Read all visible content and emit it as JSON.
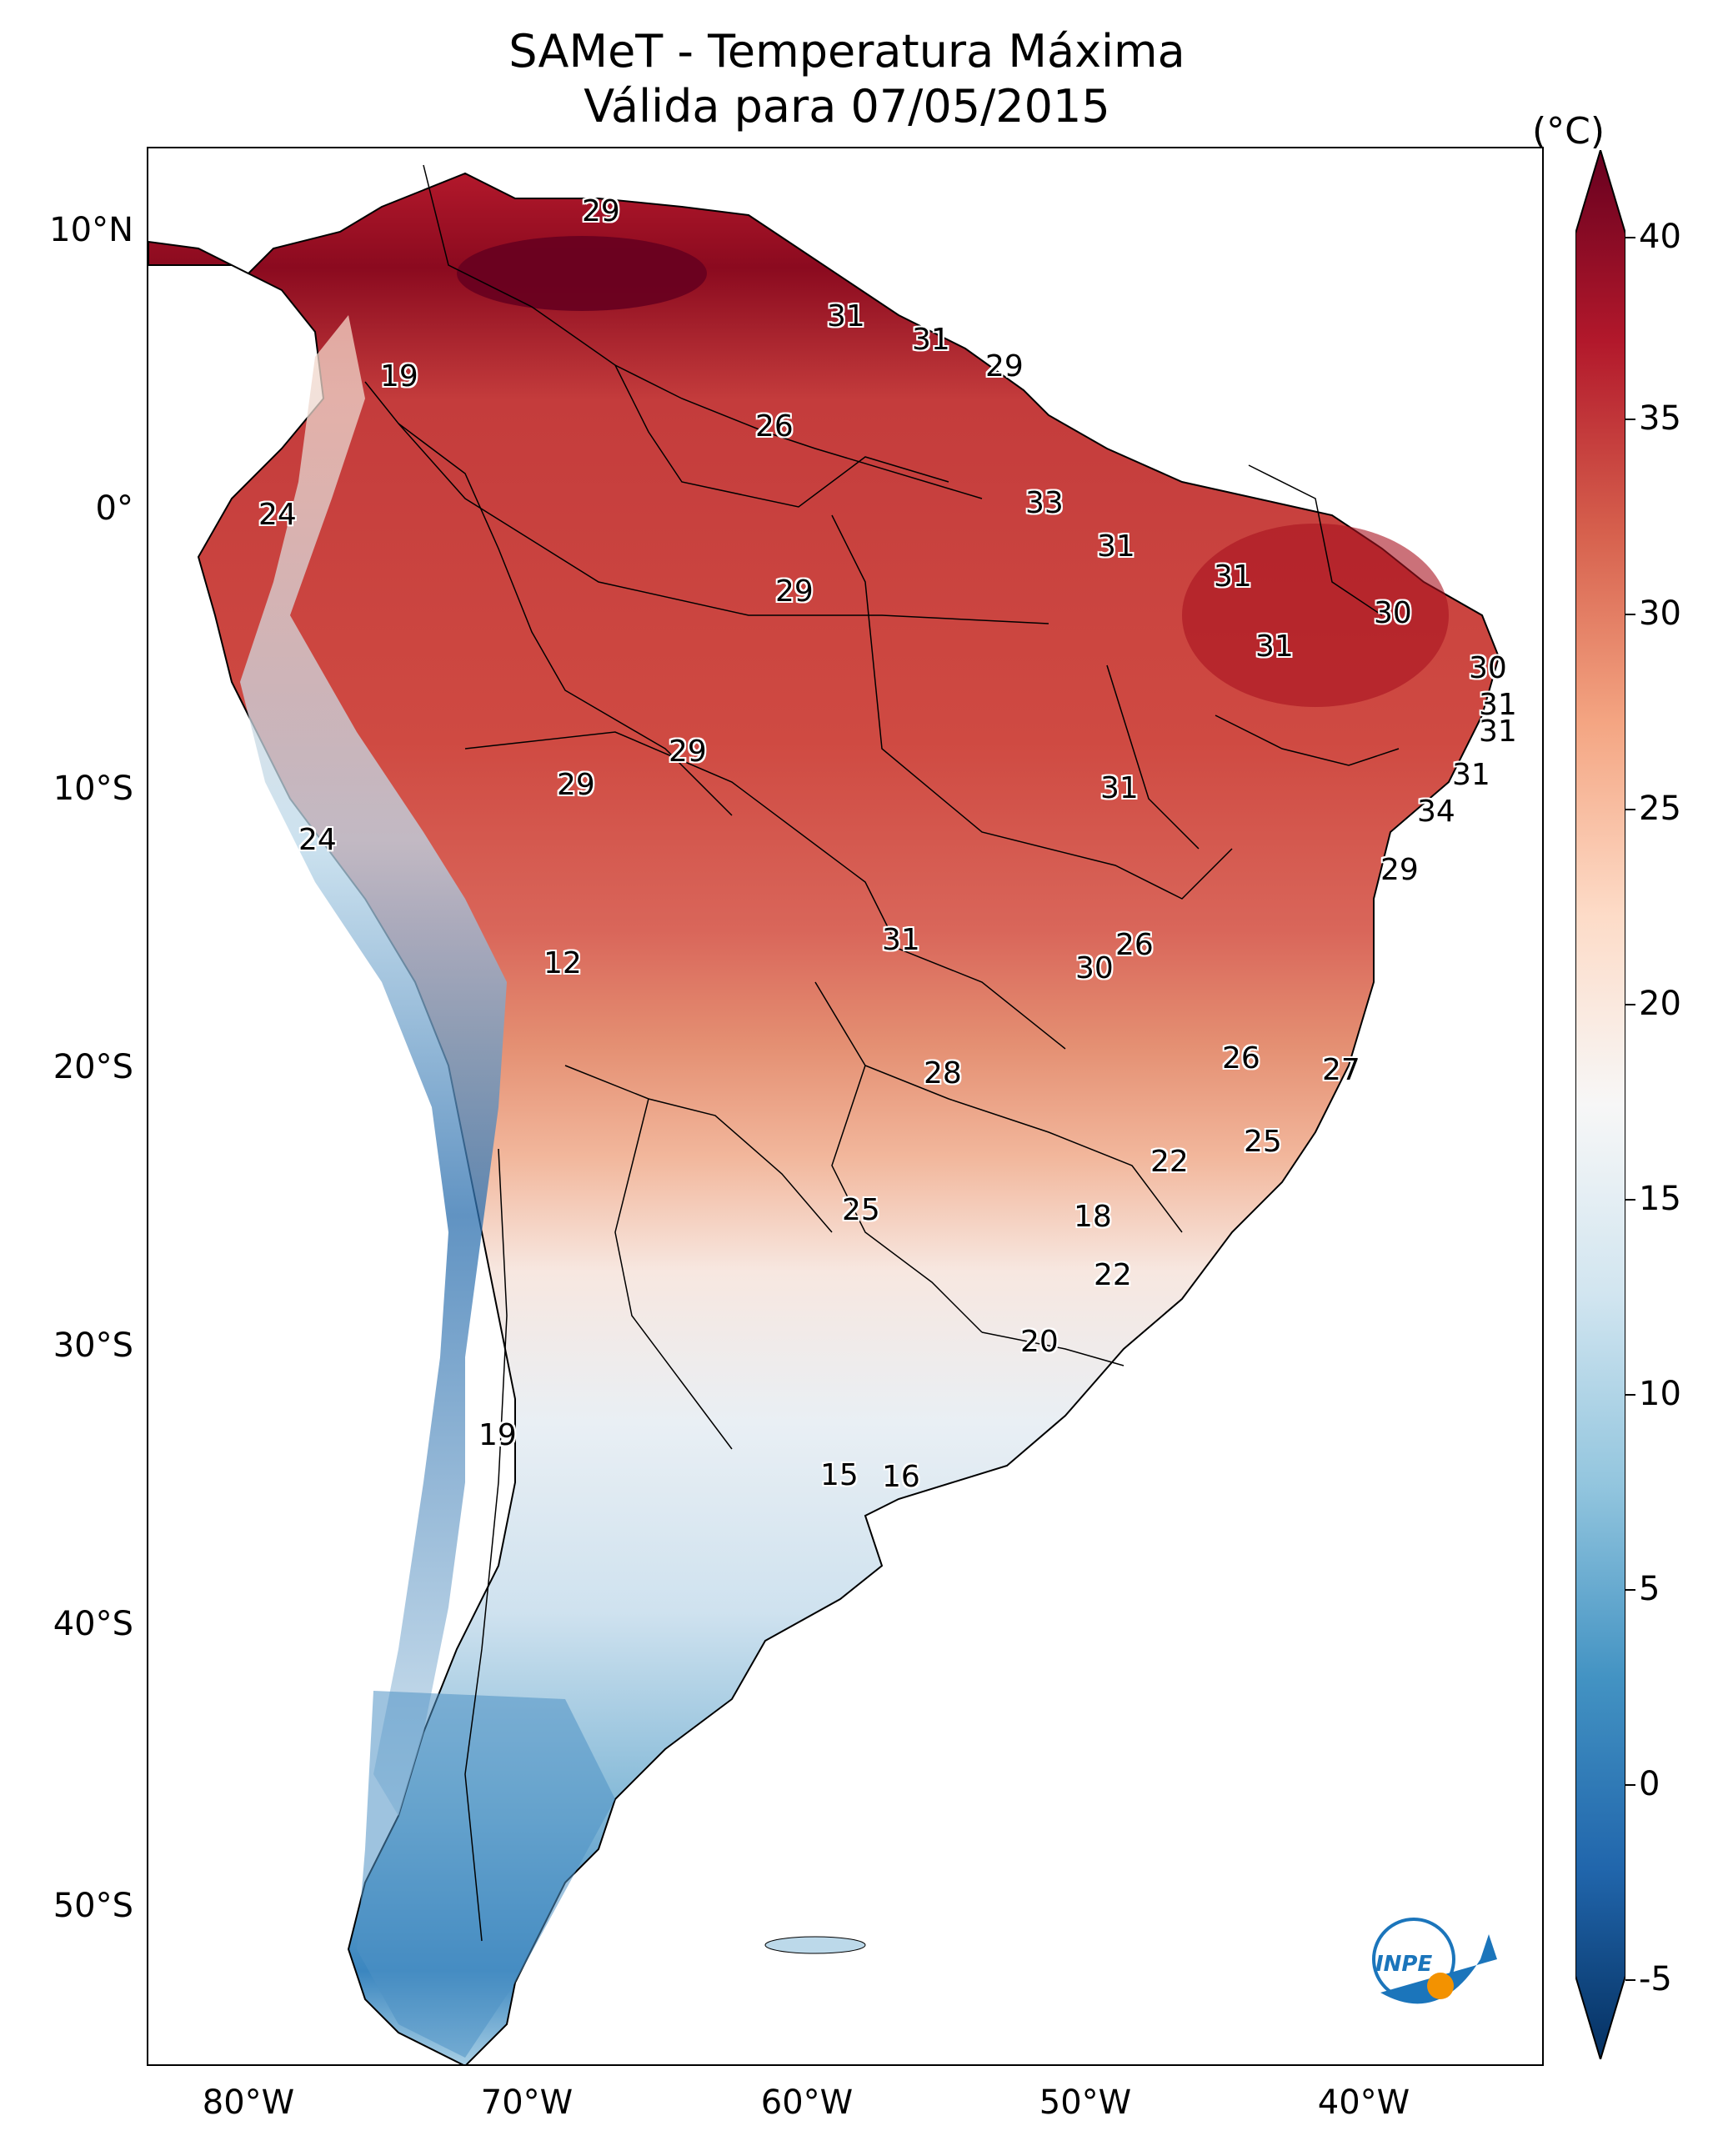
{
  "title": {
    "line1": "SAMeT - Temperatura Máxima",
    "line2": "Válida para 07/05/2015"
  },
  "axes": {
    "lat_labels": [
      "10°N",
      "0°",
      "10°S",
      "20°S",
      "30°S",
      "40°S",
      "50°S"
    ],
    "lon_labels": [
      "80°W",
      "70°W",
      "60°W",
      "50°W",
      "40°W"
    ]
  },
  "colorbar": {
    "unit": "(°C)",
    "ticks": [
      "40",
      "35",
      "30",
      "25",
      "20",
      "15",
      "10",
      "5",
      "0",
      "-5"
    ],
    "colors": [
      "#67001f",
      "#b2182b",
      "#d6604d",
      "#f4a582",
      "#fddbc7",
      "#f7f7f7",
      "#d1e5f0",
      "#92c5de",
      "#4393c3",
      "#2166ac",
      "#053061"
    ]
  },
  "station_values": {
    "v1": "29",
    "v2": "31",
    "v3": "31",
    "v4": "29",
    "v5": "19",
    "v6": "26",
    "v7": "24",
    "v8": "33",
    "v9": "31",
    "v10": "31",
    "v11": "29",
    "v12": "30",
    "v13": "31",
    "v14": "30",
    "v15": "31",
    "v16": "31",
    "v17": "29",
    "v18": "29",
    "v19": "31",
    "v20": "31",
    "v21": "34",
    "v22": "24",
    "v23": "29",
    "v24": "26",
    "v25": "31",
    "v26": "30",
    "v27": "12",
    "v28": "28",
    "v29": "26",
    "v30": "27",
    "v31": "25",
    "v32": "22",
    "v33": "25",
    "v34": "18",
    "v35": "22",
    "v36": "20",
    "v37": "19",
    "v38": "15",
    "v39": "16"
  },
  "logo": {
    "text": "INPE"
  }
}
